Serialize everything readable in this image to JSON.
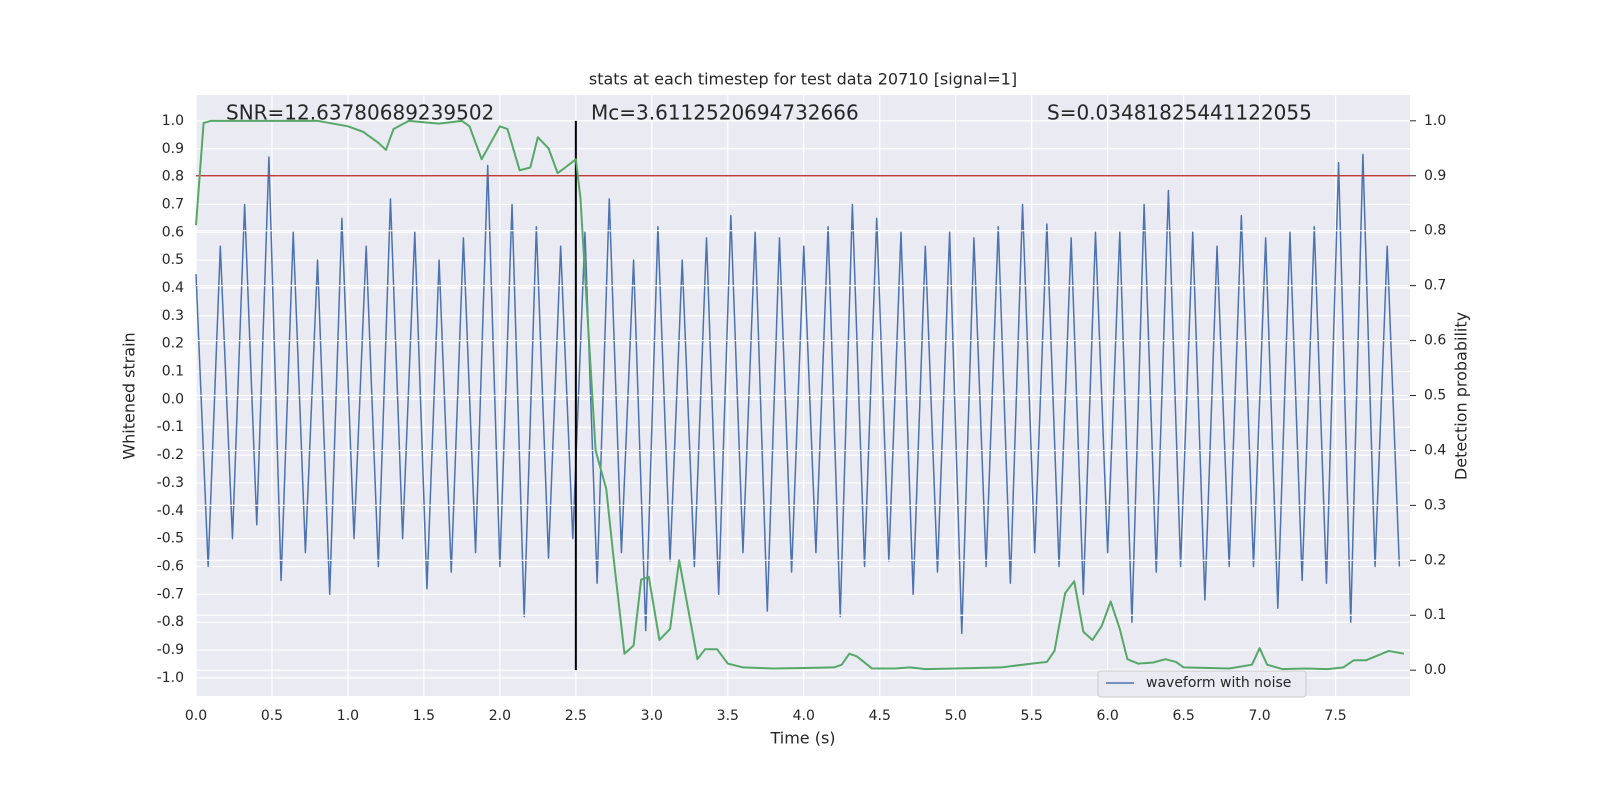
{
  "chart_data": {
    "type": "line",
    "title": "stats at each timestep for test data 20710 [signal=1]",
    "xlabel": "Time (s)",
    "ylabel": "Whitened strain",
    "y2label": "Detection probability",
    "annotations": [
      "SNR=12.63780689239502",
      "Mc=3.6112520694732666",
      "S=0.03481825441122055"
    ],
    "xlim": [
      0,
      7.99
    ],
    "ylim": [
      -1.065,
      1.093
    ],
    "y2lim": [
      -0.047,
      1.047
    ],
    "xticks": [
      {
        "value": 0,
        "label": "0.0"
      },
      0.5,
      {
        "value": 1,
        "label": "1.0"
      },
      1.5,
      {
        "value": 2,
        "label": "2.0"
      },
      2.5,
      {
        "value": 3,
        "label": "3.0"
      },
      3.5,
      {
        "value": 4,
        "label": "4.0"
      },
      4.5,
      {
        "value": 5,
        "label": "5.0"
      },
      5.5,
      {
        "value": 6,
        "label": "6.0"
      },
      6.5,
      {
        "value": 7,
        "label": "7.0"
      },
      7.5
    ],
    "yticks": [
      {
        "value": -1,
        "label": "-1.0"
      },
      -0.9,
      -0.8,
      -0.7,
      -0.6,
      -0.5,
      -0.4,
      -0.3,
      -0.2,
      -0.1,
      {
        "value": 0,
        "label": "0.0"
      },
      0.1,
      0.2,
      0.3,
      0.4,
      0.5,
      0.6,
      0.7,
      0.8,
      0.9,
      {
        "value": 1,
        "label": "1.0"
      }
    ],
    "y2ticks": [
      {
        "value": 0,
        "label": "0.0"
      },
      0.1,
      0.2,
      0.3,
      0.4,
      0.5,
      0.6,
      0.7,
      0.8,
      0.9,
      {
        "value": 1,
        "label": "1.0"
      }
    ],
    "grid": true,
    "legend": "lower right",
    "background": "#eaeaf2",
    "series": [
      {
        "name": "waveform with noise",
        "color": "#4c72b0",
        "x": [
          0,
          0.08,
          0.16,
          0.24,
          0.32,
          0.4,
          0.48,
          0.56,
          0.64,
          0.72,
          0.8,
          0.88,
          0.96,
          1.04,
          1.12,
          1.2,
          1.28,
          1.36,
          1.44,
          1.52,
          1.6,
          1.68,
          1.76,
          1.84,
          1.92,
          2,
          2.08,
          2.16,
          2.24,
          2.32,
          2.4,
          2.48,
          2.56,
          2.64,
          2.72,
          2.8,
          2.88,
          2.96,
          3.04,
          3.12,
          3.2,
          3.28,
          3.36,
          3.44,
          3.52,
          3.6,
          3.68,
          3.76,
          3.84,
          3.92,
          4,
          4.08,
          4.16,
          4.24,
          4.32,
          4.4,
          4.48,
          4.56,
          4.64,
          4.72,
          4.8,
          4.88,
          4.96,
          5.04,
          5.12,
          5.2,
          5.28,
          5.36,
          5.44,
          5.52,
          5.6,
          5.68,
          5.76,
          5.84,
          5.92,
          6,
          6.08,
          6.16,
          6.24,
          6.32,
          6.4,
          6.48,
          6.56,
          6.64,
          6.72,
          6.8,
          6.88,
          6.96,
          7.04,
          7.12,
          7.2,
          7.28,
          7.36,
          7.44,
          7.52,
          7.6,
          7.68,
          7.76,
          7.84,
          7.92
        ],
        "values": [
          0.45,
          -0.6,
          0.55,
          -0.5,
          0.7,
          -0.45,
          0.87,
          -0.65,
          0.6,
          -0.55,
          0.5,
          -0.7,
          0.65,
          -0.5,
          0.55,
          -0.6,
          0.72,
          -0.5,
          0.6,
          -0.68,
          0.5,
          -0.62,
          0.58,
          -0.55,
          0.84,
          -0.6,
          0.7,
          -0.78,
          0.62,
          -0.57,
          0.55,
          -0.5,
          0.6,
          -0.66,
          0.72,
          -0.55,
          0.5,
          -0.83,
          0.62,
          -0.58,
          0.5,
          -0.6,
          0.58,
          -0.7,
          0.66,
          -0.55,
          0.6,
          -0.76,
          0.58,
          -0.62,
          0.55,
          -0.55,
          0.62,
          -0.78,
          0.7,
          -0.6,
          0.65,
          -0.58,
          0.6,
          -0.7,
          0.55,
          -0.62,
          0.6,
          -0.84,
          0.58,
          -0.6,
          0.62,
          -0.66,
          0.7,
          -0.55,
          0.63,
          -0.6,
          0.58,
          -0.7,
          0.6,
          -0.55,
          0.6,
          -0.8,
          0.7,
          -0.62,
          0.75,
          -0.6,
          0.6,
          -0.72,
          0.55,
          -0.6,
          0.66,
          -0.6,
          0.58,
          -0.75,
          0.6,
          -0.65,
          0.62,
          -0.66,
          0.85,
          -0.8,
          0.88,
          -0.6,
          0.55,
          -0.6
        ]
      },
      {
        "color": "#55a868",
        "axis": "y2",
        "x": [
          0,
          0.05,
          0.1,
          0.3,
          0.5,
          0.8,
          1,
          1.1,
          1.2,
          1.25,
          1.3,
          1.4,
          1.6,
          1.75,
          1.8,
          1.88,
          2,
          2.05,
          2.13,
          2.2,
          2.25,
          2.32,
          2.38,
          2.43,
          2.5,
          2.53,
          2.63,
          2.7,
          2.75,
          2.82,
          2.88,
          2.93,
          2.98,
          3.05,
          3.12,
          3.18,
          3.3,
          3.35,
          3.43,
          3.5,
          3.6,
          3.8,
          4,
          4.2,
          4.25,
          4.3,
          4.35,
          4.45,
          4.6,
          4.7,
          4.8,
          5,
          5.3,
          5.5,
          5.6,
          5.65,
          5.72,
          5.78,
          5.84,
          5.9,
          5.96,
          6.02,
          6.08,
          6.13,
          6.2,
          6.3,
          6.38,
          6.45,
          6.5,
          6.8,
          6.95,
          7,
          7.05,
          7.15,
          7.3,
          7.45,
          7.55,
          7.62,
          7.7,
          7.85,
          7.95
        ],
        "values": [
          0.81,
          0.996,
          1,
          1,
          1,
          1,
          0.99,
          0.98,
          0.96,
          0.947,
          0.985,
          1,
          0.995,
          1,
          0.99,
          0.93,
          0.99,
          0.985,
          0.91,
          0.915,
          0.97,
          0.95,
          0.905,
          0.915,
          0.93,
          0.86,
          0.4,
          0.33,
          0.2,
          0.03,
          0.045,
          0.165,
          0.17,
          0.055,
          0.075,
          0.2,
          0.02,
          0.038,
          0.038,
          0.012,
          0.005,
          0.003,
          0.004,
          0.005,
          0.01,
          0.03,
          0.025,
          0.003,
          0.003,
          0.005,
          0.002,
          0.003,
          0.005,
          0.012,
          0.015,
          0.035,
          0.14,
          0.162,
          0.07,
          0.055,
          0.08,
          0.125,
          0.075,
          0.02,
          0.012,
          0.014,
          0.02,
          0.015,
          0.005,
          0.003,
          0.01,
          0.04,
          0.01,
          0.002,
          0.003,
          0.002,
          0.005,
          0.018,
          0.018,
          0.035,
          0.03
        ]
      }
    ],
    "hlines": [
      {
        "y": 0.9,
        "axis": "y2",
        "color": "#c03d3e"
      }
    ],
    "vlines": [
      {
        "x": 2.5,
        "ymin": 0,
        "ymax": 1,
        "axis": "y2",
        "color": "#000000"
      }
    ]
  }
}
